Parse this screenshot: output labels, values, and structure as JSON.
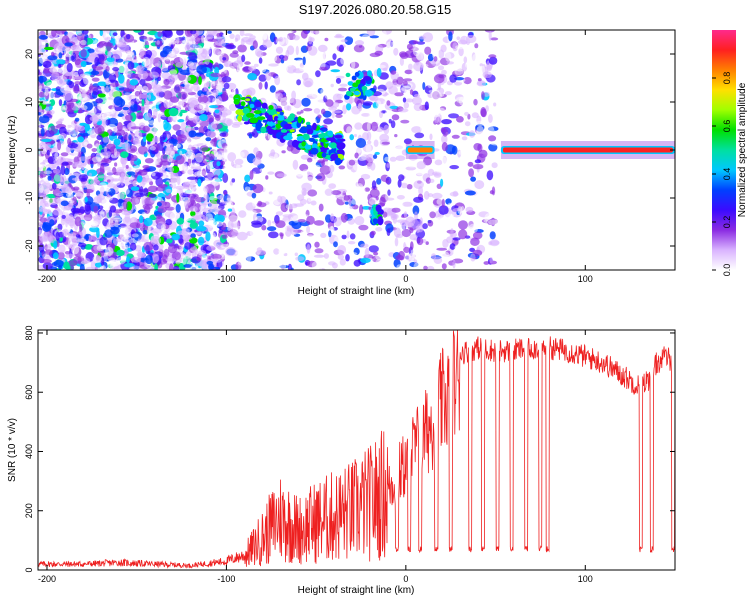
{
  "title": "S197.2026.080.20.58.G15",
  "chart_data": [
    {
      "type": "heatmap",
      "xlabel": "Height of straight line (km)",
      "ylabel": "Frequency (Hz)",
      "xlim": [
        -205,
        150
      ],
      "ylim": [
        -25,
        25
      ],
      "xticks": [
        -200,
        -100,
        0,
        100
      ],
      "yticks": [
        -20,
        -10,
        0,
        10,
        20
      ],
      "colorbar": {
        "label": "Normalized spectral amplitude",
        "range": [
          0,
          1
        ],
        "ticks": [
          "0.0",
          "0.2",
          "0.4",
          "0.6",
          "0.8"
        ],
        "tick_values": [
          0,
          0.2,
          0.4,
          0.6,
          0.8
        ],
        "colors": [
          "#ffffff",
          "#d9b3ff",
          "#8a2be2",
          "#3b0bff",
          "#0040ff",
          "#00c8ff",
          "#00e0a0",
          "#00e000",
          "#a0ff00",
          "#ffe000",
          "#ff8000",
          "#ff2020",
          "#ff2a8c"
        ]
      },
      "features": [
        {
          "name": "noise",
          "x": [
            -205,
            -100
          ],
          "f": [
            -25,
            25
          ],
          "amp": 0.35,
          "density": 0.55
        },
        {
          "name": "scattered",
          "x": [
            -100,
            50
          ],
          "f": [
            -25,
            25
          ],
          "amp": 0.25,
          "density": 0.18
        },
        {
          "name": "descending-tone",
          "x": [
            -95,
            -35
          ],
          "f_start": 9,
          "f_end": 0,
          "amp": 0.55
        },
        {
          "name": "blob",
          "x": [
            -33,
            -18
          ],
          "f": [
            11,
            16
          ],
          "amp": 0.55
        },
        {
          "name": "blob",
          "x": [
            -18,
            -14
          ],
          "f": [
            -15,
            -12
          ],
          "amp": 0.5
        },
        {
          "name": "carrier",
          "x": [
            0,
            16
          ],
          "f": [
            0,
            0
          ],
          "amp": 0.8
        },
        {
          "name": "carrier",
          "x": [
            53,
            150
          ],
          "f": [
            0,
            0
          ],
          "amp": 0.95
        }
      ]
    },
    {
      "type": "line",
      "xlabel": "Height of straight line (km)",
      "ylabel": "SNR (10 * v/v)",
      "xlim": [
        -205,
        150
      ],
      "ylim": [
        0,
        810
      ],
      "xticks": [
        -200,
        -100,
        0,
        100
      ],
      "yticks": [
        0,
        200,
        400,
        600,
        800
      ],
      "color": "#ee2020",
      "series": [
        {
          "name": "SNR",
          "x": [
            -205,
            -180,
            -160,
            -140,
            -120,
            -100,
            -90,
            -80,
            -70,
            -60,
            -50,
            -40,
            -30,
            -20,
            -10,
            -5,
            0,
            5,
            10,
            15,
            20,
            25,
            30,
            35,
            40,
            50,
            60,
            70,
            80,
            90,
            100,
            110,
            120,
            125,
            130,
            135,
            140,
            145,
            150
          ],
          "y": [
            20,
            20,
            25,
            20,
            15,
            30,
            50,
            120,
            200,
            150,
            180,
            200,
            220,
            250,
            300,
            350,
            400,
            460,
            500,
            560,
            620,
            680,
            730,
            740,
            750,
            740,
            740,
            750,
            750,
            740,
            720,
            700,
            660,
            640,
            620,
            640,
            700,
            720,
            700
          ],
          "dropouts": [
            -5,
            2,
            8,
            17,
            25,
            36,
            43,
            51,
            59,
            67,
            75,
            79,
            131,
            137,
            149
          ],
          "dropout_level": 60
        }
      ]
    }
  ]
}
